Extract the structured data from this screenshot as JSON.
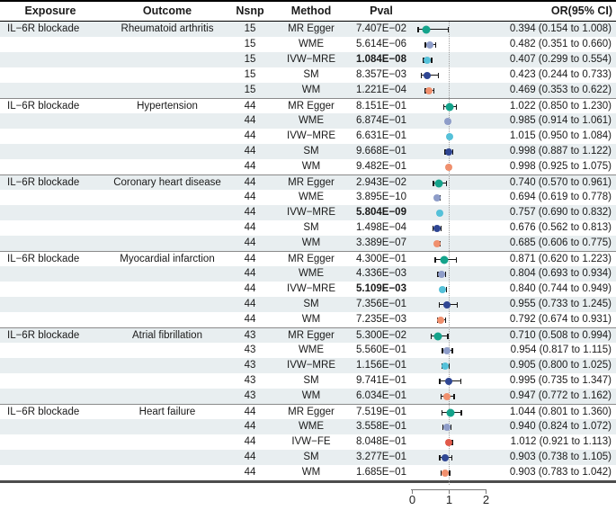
{
  "header": {
    "exposure": "Exposure",
    "outcome": "Outcome",
    "nsnp": "Nsnp",
    "method": "Method",
    "pval": "Pval",
    "or_ci": "OR(95% CI)"
  },
  "axis": {
    "ticks": [
      "0",
      "1",
      "2"
    ]
  },
  "colors": {
    "row_shade": "#e8eef0",
    "reference_line": "#9e9e9e",
    "whisker": "#151515",
    "methods": {
      "MR Egger": "#14a38b",
      "WME": "#8e9dc9",
      "IVW-MRE": "#55c1d9",
      "IVW-FE": "#e25a4a",
      "SM": "#2f4693",
      "WM": "#f0906e"
    }
  },
  "chart_data": {
    "type": "forest",
    "x_ticks": [
      0,
      1,
      2
    ],
    "x_range": [
      0,
      2
    ],
    "reference_line": 1,
    "groups": [
      {
        "exposure": "IL−6R blockade",
        "outcome": "Rheumatoid arthritis",
        "nsnp": "15",
        "rows": [
          {
            "method": "MR Egger",
            "pval": "7.407E−02",
            "pval_bold": false,
            "or": 0.394,
            "lo": 0.154,
            "hi": 1.008,
            "or_text": "0.394 (0.154 to 1.008)"
          },
          {
            "method": "WME",
            "pval": "5.614E−06",
            "pval_bold": false,
            "or": 0.482,
            "lo": 0.351,
            "hi": 0.66,
            "or_text": "0.482 (0.351 to 0.660)"
          },
          {
            "method": "IVW−MRE",
            "pval": "1.084E−08",
            "pval_bold": true,
            "or": 0.407,
            "lo": 0.299,
            "hi": 0.554,
            "or_text": "0.407 (0.299 to 0.554)"
          },
          {
            "method": "SM",
            "pval": "8.357E−03",
            "pval_bold": false,
            "or": 0.423,
            "lo": 0.244,
            "hi": 0.733,
            "or_text": "0.423 (0.244 to 0.733)"
          },
          {
            "method": "WM",
            "pval": "1.221E−04",
            "pval_bold": false,
            "or": 0.469,
            "lo": 0.353,
            "hi": 0.622,
            "or_text": "0.469 (0.353 to 0.622)"
          }
        ]
      },
      {
        "exposure": "IL−6R blockade",
        "outcome": "Hypertension",
        "nsnp": "44",
        "rows": [
          {
            "method": "MR Egger",
            "pval": "8.151E−01",
            "pval_bold": false,
            "or": 1.022,
            "lo": 0.85,
            "hi": 1.23,
            "or_text": "1.022 (0.850 to 1.230)"
          },
          {
            "method": "WME",
            "pval": "6.874E−01",
            "pval_bold": false,
            "or": 0.985,
            "lo": 0.914,
            "hi": 1.061,
            "or_text": "0.985 (0.914 to 1.061)"
          },
          {
            "method": "IVW−MRE",
            "pval": "6.631E−01",
            "pval_bold": false,
            "or": 1.015,
            "lo": 0.95,
            "hi": 1.084,
            "or_text": "1.015 (0.950 to 1.084)"
          },
          {
            "method": "SM",
            "pval": "9.668E−01",
            "pval_bold": false,
            "or": 0.998,
            "lo": 0.887,
            "hi": 1.122,
            "or_text": "0.998 (0.887 to 1.122)"
          },
          {
            "method": "WM",
            "pval": "9.482E−01",
            "pval_bold": false,
            "or": 0.998,
            "lo": 0.925,
            "hi": 1.075,
            "or_text": "0.998 (0.925 to 1.075)"
          }
        ]
      },
      {
        "exposure": "IL−6R blockade",
        "outcome": "Coronary heart disease",
        "nsnp": "44",
        "rows": [
          {
            "method": "MR Egger",
            "pval": "2.943E−02",
            "pval_bold": false,
            "or": 0.74,
            "lo": 0.57,
            "hi": 0.961,
            "or_text": "0.740 (0.570 to 0.961)"
          },
          {
            "method": "WME",
            "pval": "3.895E−10",
            "pval_bold": false,
            "or": 0.694,
            "lo": 0.619,
            "hi": 0.778,
            "or_text": "0.694 (0.619 to 0.778)"
          },
          {
            "method": "IVW−MRE",
            "pval": "5.804E−09",
            "pval_bold": true,
            "or": 0.757,
            "lo": 0.69,
            "hi": 0.832,
            "or_text": "0.757 (0.690 to 0.832)"
          },
          {
            "method": "SM",
            "pval": "1.498E−04",
            "pval_bold": false,
            "or": 0.676,
            "lo": 0.562,
            "hi": 0.813,
            "or_text": "0.676 (0.562 to 0.813)"
          },
          {
            "method": "WM",
            "pval": "3.389E−07",
            "pval_bold": false,
            "or": 0.685,
            "lo": 0.606,
            "hi": 0.775,
            "or_text": "0.685 (0.606 to 0.775)"
          }
        ]
      },
      {
        "exposure": "IL−6R blockade",
        "outcome": "Myocardial infarction",
        "nsnp": "44",
        "rows": [
          {
            "method": "MR Egger",
            "pval": "4.300E−01",
            "pval_bold": false,
            "or": 0.871,
            "lo": 0.62,
            "hi": 1.223,
            "or_text": "0.871 (0.620 to 1.223)"
          },
          {
            "method": "WME",
            "pval": "4.336E−03",
            "pval_bold": false,
            "or": 0.804,
            "lo": 0.693,
            "hi": 0.934,
            "or_text": "0.804 (0.693 to 0.934)"
          },
          {
            "method": "IVW−MRE",
            "pval": "5.109E−03",
            "pval_bold": true,
            "or": 0.84,
            "lo": 0.744,
            "hi": 0.949,
            "or_text": "0.840 (0.744 to 0.949)"
          },
          {
            "method": "SM",
            "pval": "7.356E−01",
            "pval_bold": false,
            "or": 0.955,
            "lo": 0.733,
            "hi": 1.245,
            "or_text": "0.955 (0.733 to 1.245)"
          },
          {
            "method": "WM",
            "pval": "7.235E−03",
            "pval_bold": false,
            "or": 0.792,
            "lo": 0.674,
            "hi": 0.931,
            "or_text": "0.792 (0.674 to 0.931)"
          }
        ]
      },
      {
        "exposure": "IL−6R blockade",
        "outcome": "Atrial fibrillation",
        "nsnp": "43",
        "rows": [
          {
            "method": "MR Egger",
            "pval": "5.300E−02",
            "pval_bold": false,
            "or": 0.71,
            "lo": 0.508,
            "hi": 0.994,
            "or_text": "0.710 (0.508 to 0.994)"
          },
          {
            "method": "WME",
            "pval": "5.560E−01",
            "pval_bold": false,
            "or": 0.954,
            "lo": 0.817,
            "hi": 1.115,
            "or_text": "0.954 (0.817 to 1.115)"
          },
          {
            "method": "IVW−MRE",
            "pval": "1.156E−01",
            "pval_bold": false,
            "or": 0.905,
            "lo": 0.8,
            "hi": 1.025,
            "or_text": "0.905 (0.800 to 1.025)"
          },
          {
            "method": "SM",
            "pval": "9.741E−01",
            "pval_bold": false,
            "or": 0.995,
            "lo": 0.735,
            "hi": 1.347,
            "or_text": "0.995 (0.735 to 1.347)"
          },
          {
            "method": "WM",
            "pval": "6.034E−01",
            "pval_bold": false,
            "or": 0.947,
            "lo": 0.772,
            "hi": 1.162,
            "or_text": "0.947 (0.772 to 1.162)"
          }
        ]
      },
      {
        "exposure": "IL−6R blockade",
        "outcome": "Heart failure",
        "nsnp": "44",
        "rows": [
          {
            "method": "MR Egger",
            "pval": "7.519E−01",
            "pval_bold": false,
            "or": 1.044,
            "lo": 0.801,
            "hi": 1.36,
            "or_text": "1.044 (0.801 to 1.360)"
          },
          {
            "method": "WME",
            "pval": "3.558E−01",
            "pval_bold": false,
            "or": 0.94,
            "lo": 0.824,
            "hi": 1.072,
            "or_text": "0.940 (0.824 to 1.072)"
          },
          {
            "method": "IVW−FE",
            "pval": "8.048E−01",
            "pval_bold": false,
            "or": 1.012,
            "lo": 0.921,
            "hi": 1.113,
            "or_text": "1.012 (0.921 to 1.113)"
          },
          {
            "method": "SM",
            "pval": "3.277E−01",
            "pval_bold": false,
            "or": 0.903,
            "lo": 0.738,
            "hi": 1.105,
            "or_text": "0.903 (0.738 to 1.105)"
          },
          {
            "method": "WM",
            "pval": "1.685E−01",
            "pval_bold": false,
            "or": 0.903,
            "lo": 0.783,
            "hi": 1.042,
            "or_text": "0.903 (0.783 to 1.042)"
          }
        ]
      }
    ]
  }
}
